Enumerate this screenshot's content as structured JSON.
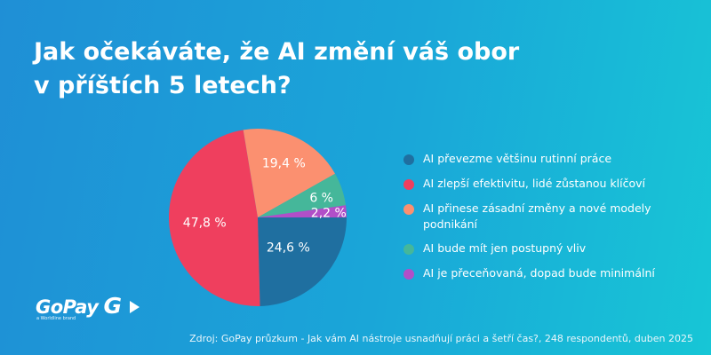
{
  "title": {
    "line1": "Jak očekáváte, že AI změní váš obor",
    "line2": "v příštích 5 letech?"
  },
  "chart_data": {
    "type": "pie",
    "slices": [
      {
        "label": "AI převezme většinu rutinní práce",
        "value": 24.6,
        "value_label": "24,6 %",
        "color": "#1f6fa0"
      },
      {
        "label": "AI zlepší efektivitu, lidé zůstanou klíčoví",
        "value": 47.8,
        "value_label": "47,8 %",
        "color": "#ef3f5e"
      },
      {
        "label": "AI přinese zásadní změny a nové modely podnikání",
        "value": 19.4,
        "value_label": "19,4 %",
        "color": "#fb9070"
      },
      {
        "label": "AI bude mít jen postupný vliv",
        "value": 6.0,
        "value_label": "6 %",
        "color": "#45b79a"
      },
      {
        "label": "AI je přeceňovaná, dopad bude minimální",
        "value": 2.2,
        "value_label": "2,2 %",
        "color": "#b14fc8"
      }
    ],
    "legend_placement": "right"
  },
  "legend": {
    "items": [
      {
        "label": "AI převezme většinu rutinní práce",
        "color": "#1f6fa0"
      },
      {
        "label": "AI zlepší efektivitu, lidé zůstanou klíčoví",
        "color": "#ef3f5e"
      },
      {
        "label": "AI přinese zásadní změny a nové modely podnikání",
        "color": "#fb9070"
      },
      {
        "label": "AI bude mít jen postupný vliv",
        "color": "#45b79a"
      },
      {
        "label": "AI je přeceňovaná, dopad bude minimální",
        "color": "#b14fc8"
      }
    ]
  },
  "logo": {
    "word": "GoPay",
    "mark": "G",
    "tagline": "a Worldline brand"
  },
  "source": "Zdroj: GoPay průzkum - Jak vám AI nástroje usnadňují práci a šetří čas?, 248 respondentů, duben 2025"
}
